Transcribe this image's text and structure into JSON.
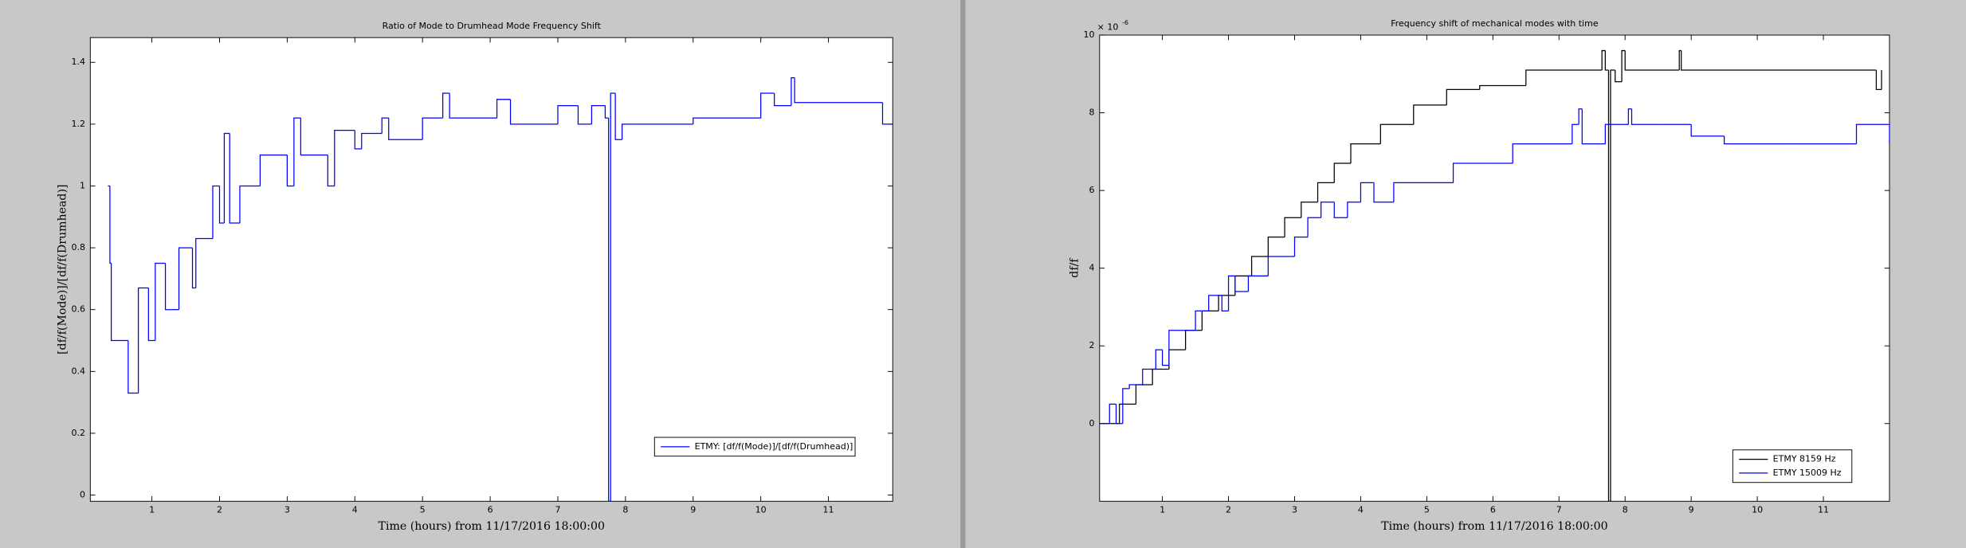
{
  "chart_data": [
    {
      "type": "line",
      "drawstyle": "steps-post",
      "title": "Ratio of Mode to Drumhead Mode Frequency Shift",
      "xlabel": "Time (hours) from 11/17/2016 18:00:00",
      "ylabel": "[df/f(Mode)]/[df/f(Drumhead)]",
      "xlim": [
        0.09,
        11.95
      ],
      "ylim": [
        -0.02,
        1.48
      ],
      "xticks": [
        1,
        2,
        3,
        4,
        5,
        6,
        7,
        8,
        9,
        10,
        11
      ],
      "yticks": [
        0,
        0.2,
        0.4,
        0.6,
        0.8,
        1,
        1.2,
        1.4
      ],
      "legend": "lower right",
      "series": [
        {
          "name": "ETMY: [df/f(Mode)]/[df/f(Drumhead)]",
          "color": "#0000ff",
          "x": [
            0.35,
            0.38,
            0.4,
            0.65,
            0.8,
            0.95,
            1.05,
            1.2,
            1.25,
            1.4,
            1.6,
            1.65,
            1.9,
            2.0,
            2.07,
            2.15,
            2.3,
            2.6,
            3.0,
            3.1,
            3.2,
            3.6,
            3.7,
            4.0,
            4.1,
            4.4,
            4.5,
            5.0,
            5.3,
            5.4,
            6.1,
            6.3,
            7.0,
            7.3,
            7.5,
            7.7,
            7.75,
            7.78,
            7.85,
            7.95,
            8.1,
            9.0,
            10.0,
            10.2,
            10.45,
            10.5,
            11.8,
            11.95
          ],
          "values": [
            1.0,
            0.75,
            0.5,
            0.33,
            0.67,
            0.5,
            0.75,
            0.6,
            0.6,
            0.8,
            0.67,
            0.83,
            1.0,
            0.88,
            1.17,
            0.88,
            1.0,
            1.1,
            1.0,
            1.22,
            1.1,
            1.0,
            1.18,
            1.12,
            1.17,
            1.22,
            1.15,
            1.22,
            1.3,
            1.22,
            1.28,
            1.2,
            1.26,
            1.2,
            1.26,
            1.22,
            -0.02,
            1.3,
            1.15,
            1.2,
            1.2,
            1.22,
            1.3,
            1.26,
            1.35,
            1.27,
            1.2,
            1.2
          ]
        }
      ]
    },
    {
      "type": "line",
      "drawstyle": "steps-post",
      "title": "Frequency shift of mechanical modes with time",
      "xlabel": "Time (hours) from 11/17/2016 18:00:00",
      "ylabel": "df/f",
      "y_multiplier": "× 10",
      "y_multiplier_exponent": "-6",
      "xlim": [
        0.05,
        12
      ],
      "ylim": [
        -2,
        10
      ],
      "xticks": [
        1,
        2,
        3,
        4,
        5,
        6,
        7,
        8,
        9,
        10,
        11
      ],
      "yticks": [
        0,
        2,
        4,
        6,
        8,
        10
      ],
      "legend": "lower right",
      "series": [
        {
          "name": "ETMY 8159 Hz",
          "color": "#000000",
          "x": [
            0.05,
            0.35,
            0.6,
            0.85,
            1.1,
            1.35,
            1.6,
            1.85,
            2.1,
            2.35,
            2.6,
            2.85,
            3.1,
            3.35,
            3.6,
            3.85,
            4.3,
            4.8,
            5.3,
            5.8,
            6.5,
            7.65,
            7.7,
            7.75,
            7.78,
            7.85,
            7.95,
            8.0,
            8.82,
            8.85,
            11.8,
            11.88
          ],
          "values": [
            0,
            0.5,
            1,
            1.4,
            1.9,
            2.4,
            2.9,
            3.3,
            3.8,
            4.3,
            4.8,
            5.3,
            5.7,
            6.2,
            6.7,
            7.2,
            7.7,
            8.2,
            8.6,
            8.7,
            9.1,
            9.6,
            9.1,
            -2,
            9.1,
            8.8,
            9.6,
            9.1,
            9.6,
            9.1,
            8.6,
            9.1
          ]
        },
        {
          "name": "ETMY 15009 Hz",
          "color": "#0000ff",
          "x": [
            0.05,
            0.2,
            0.3,
            0.4,
            0.5,
            0.7,
            0.9,
            1.0,
            1.1,
            1.25,
            1.5,
            1.7,
            1.9,
            2.0,
            2.1,
            2.3,
            2.6,
            2.8,
            3.0,
            3.2,
            3.4,
            3.6,
            3.8,
            4.0,
            4.2,
            4.5,
            5.0,
            5.4,
            5.9,
            6.3,
            6.7,
            7.2,
            7.3,
            7.35,
            7.7,
            8.0,
            8.05,
            8.1,
            8.5,
            9.0,
            9.5,
            10.0,
            10.5,
            11.0,
            11.5,
            12.0
          ],
          "values": [
            0,
            0.5,
            0,
            0.9,
            1,
            1.4,
            1.9,
            1.5,
            2.4,
            2.4,
            2.9,
            3.3,
            2.9,
            3.8,
            3.4,
            3.8,
            4.3,
            4.3,
            4.8,
            5.3,
            5.7,
            5.3,
            5.7,
            6.2,
            5.7,
            6.2,
            6.2,
            6.7,
            6.7,
            7.2,
            7.2,
            7.7,
            8.1,
            7.2,
            7.7,
            7.7,
            8.1,
            7.7,
            7.7,
            7.4,
            7.2,
            7.2,
            7.2,
            7.2,
            7.7,
            7.2
          ]
        }
      ]
    }
  ]
}
